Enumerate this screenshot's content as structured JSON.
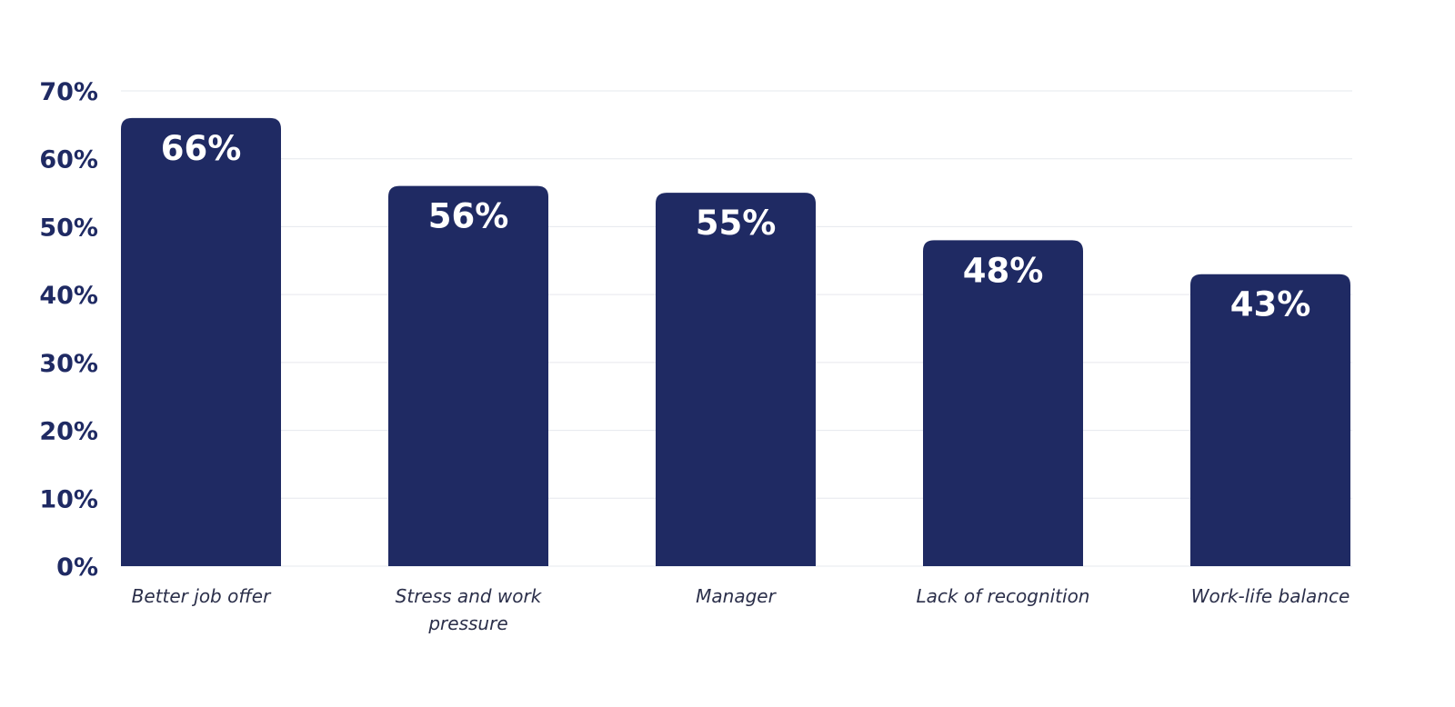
{
  "colors": {
    "bar": "#1f2a63",
    "axis_text": "#1f2a63",
    "category_text": "#2b2f4a",
    "value_text": "#ffffff",
    "grid": "#e6e8ee",
    "background": "#ffffff"
  },
  "chart_data": {
    "type": "bar",
    "title": "",
    "xlabel": "",
    "ylabel": "",
    "categories": [
      [
        "Better job offer"
      ],
      [
        "Stress and work",
        "pressure"
      ],
      [
        "Manager"
      ],
      [
        "Lack of recognition"
      ],
      [
        "Work-life balance"
      ]
    ],
    "values": [
      66,
      56,
      55,
      48,
      43
    ],
    "data_labels": [
      "66%",
      "56%",
      "55%",
      "48%",
      "43%"
    ],
    "ylim": [
      0,
      70
    ],
    "yticks": [
      0,
      10,
      20,
      30,
      40,
      50,
      60,
      70
    ],
    "ytick_labels": [
      "0%",
      "10%",
      "20%",
      "30%",
      "40%",
      "50%",
      "60%",
      "70%"
    ],
    "grid": true,
    "legend": "none"
  }
}
